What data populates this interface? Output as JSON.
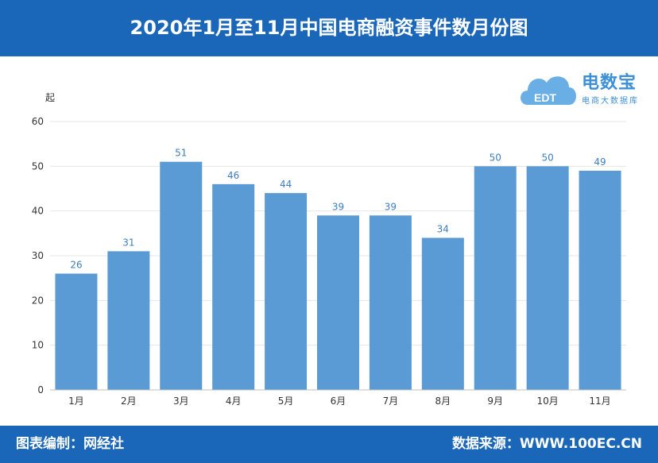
{
  "header": {
    "title": "2020年1月至11月中国电商融资事件数月份图"
  },
  "footer": {
    "compiler": "图表编制：网经社",
    "source": "数据来源：WWW.100EC.CN"
  },
  "logo": {
    "name": "电数宝",
    "subtitle": "电商大数据库",
    "mark": "EDT"
  },
  "colors": {
    "bar": "#5b9bd5",
    "label": "#3d7fbf",
    "banner": "#1a66b8"
  },
  "chart_data": {
    "type": "bar",
    "title": "2020年1月至11月中国电商融资事件数月份图",
    "ylabel": "起",
    "ylim": [
      0,
      60
    ],
    "yticks": [
      0,
      10,
      20,
      30,
      40,
      50,
      60
    ],
    "categories": [
      "1月",
      "2月",
      "3月",
      "4月",
      "5月",
      "6月",
      "7月",
      "8月",
      "9月",
      "10月",
      "11月"
    ],
    "values": [
      26,
      31,
      51,
      46,
      44,
      39,
      39,
      34,
      50,
      50,
      49
    ],
    "grid": true,
    "data_labels": true
  }
}
